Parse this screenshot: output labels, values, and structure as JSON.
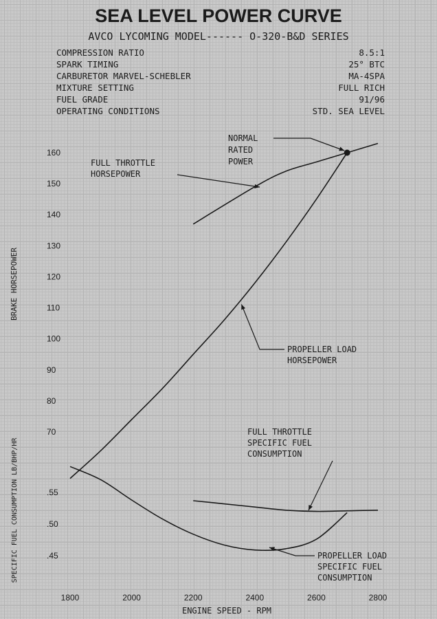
{
  "title": "SEA LEVEL POWER CURVE",
  "model_line": "AVCO LYCOMING MODEL------ O-320-B&D SERIES",
  "specs": [
    {
      "label": "COMPRESSION RATIO",
      "value": "8.5:1"
    },
    {
      "label": "SPARK TIMING",
      "value": "25° BTC"
    },
    {
      "label": "CARBURETOR MARVEL-SCHEBLER",
      "value": "MA-4SPA"
    },
    {
      "label": "MIXTURE SETTING",
      "value": "FULL RICH"
    },
    {
      "label": "FUEL GRADE",
      "value": "91/96"
    },
    {
      "label": "OPERATING CONDITIONS",
      "value": "STD. SEA LEVEL"
    }
  ],
  "annotations": {
    "normal_rated_power": [
      "NORMAL",
      "RATED",
      "POWER"
    ],
    "full_throttle_hp": [
      "FULL THROTTLE",
      "HORSEPOWER"
    ],
    "propeller_load_hp": [
      "PROPELLER LOAD",
      "HORSEPOWER"
    ],
    "full_throttle_sfc": [
      "FULL THROTTLE",
      "SPECIFIC FUEL",
      "CONSUMPTION"
    ],
    "propeller_load_sfc": [
      "PROPELLER LOAD",
      "SPECIFIC FUEL",
      "CONSUMPTION"
    ]
  },
  "chart_data": {
    "type": "line",
    "title": "SEA LEVEL POWER CURVE",
    "xlabel": "ENGINE SPEED - RPM",
    "xlim": [
      1800,
      2800
    ],
    "x_ticks": [
      "1800",
      "2000",
      "2200",
      "2400",
      "2600",
      "2800"
    ],
    "grid": true,
    "y_axes": [
      {
        "label": "BRAKE HORSEPOWER",
        "ylim": [
          70,
          160
        ],
        "ticks": [
          "160",
          "150",
          "140",
          "130",
          "120",
          "110",
          "100",
          "90",
          "80",
          "70"
        ]
      },
      {
        "label": "SPECIFIC FUEL CONSUMPTION LB/BHP/HR",
        "ylim": [
          0.45,
          0.55
        ],
        "ticks": [
          ".55",
          ".50",
          ".45"
        ]
      }
    ],
    "series": [
      {
        "name": "FULL THROTTLE HORSEPOWER",
        "axis": "hp",
        "x": [
          2200,
          2400,
          2500,
          2600,
          2700,
          2800
        ],
        "y": [
          137,
          149,
          154,
          157,
          160,
          163
        ]
      },
      {
        "name": "PROPELLER LOAD HORSEPOWER",
        "axis": "hp",
        "x": [
          1800,
          1900,
          2000,
          2100,
          2200,
          2300,
          2400,
          2500,
          2600,
          2700
        ],
        "y": [
          55,
          64,
          74,
          84,
          95,
          106,
          118,
          131,
          145,
          160
        ]
      },
      {
        "name": "FULL THROTTLE SPECIFIC FUEL CONSUMPTION",
        "axis": "sfc",
        "x": [
          2200,
          2300,
          2400,
          2500,
          2600,
          2700,
          2800
        ],
        "y": [
          0.537,
          0.532,
          0.527,
          0.522,
          0.52,
          0.521,
          0.522
        ]
      },
      {
        "name": "PROPELLER LOAD SPECIFIC FUEL CONSUMPTION",
        "axis": "sfc",
        "x": [
          1800,
          1900,
          2000,
          2100,
          2200,
          2300,
          2400,
          2500,
          2600,
          2700
        ],
        "y": [
          0.591,
          0.57,
          0.538,
          0.508,
          0.484,
          0.467,
          0.459,
          0.461,
          0.476,
          0.518
        ]
      }
    ],
    "marked_point": {
      "label": "NORMAL RATED POWER",
      "x": 2700,
      "y": 160
    }
  }
}
